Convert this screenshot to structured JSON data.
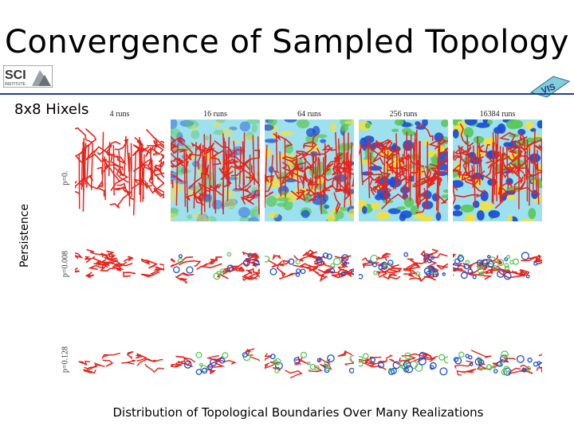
{
  "slide": {
    "title": "Convergence of Sampled Topology",
    "subtitle": "8x8 Hixels",
    "y_axis_label": "Persistence",
    "caption": "Distribution of Topological Boundaries Over Many Realizations"
  },
  "logos": {
    "left_text": "SCI",
    "left_subtext": "INSTITUTE",
    "right_text": "VIS"
  },
  "figure": {
    "columns": [
      "4 runs",
      "16 runs",
      "64 runs",
      "256 runs",
      "16384 runs"
    ],
    "rows": [
      "p=0.",
      "p=0.008",
      "p=0.128"
    ]
  },
  "colors": {
    "rule": "#1f3f9a",
    "boundary_red": "#e8231a",
    "field_blue": "#1b4fd6",
    "field_green": "#5ac85a",
    "field_yellow": "#f0e040",
    "field_cyan": "#4fc8e0"
  }
}
